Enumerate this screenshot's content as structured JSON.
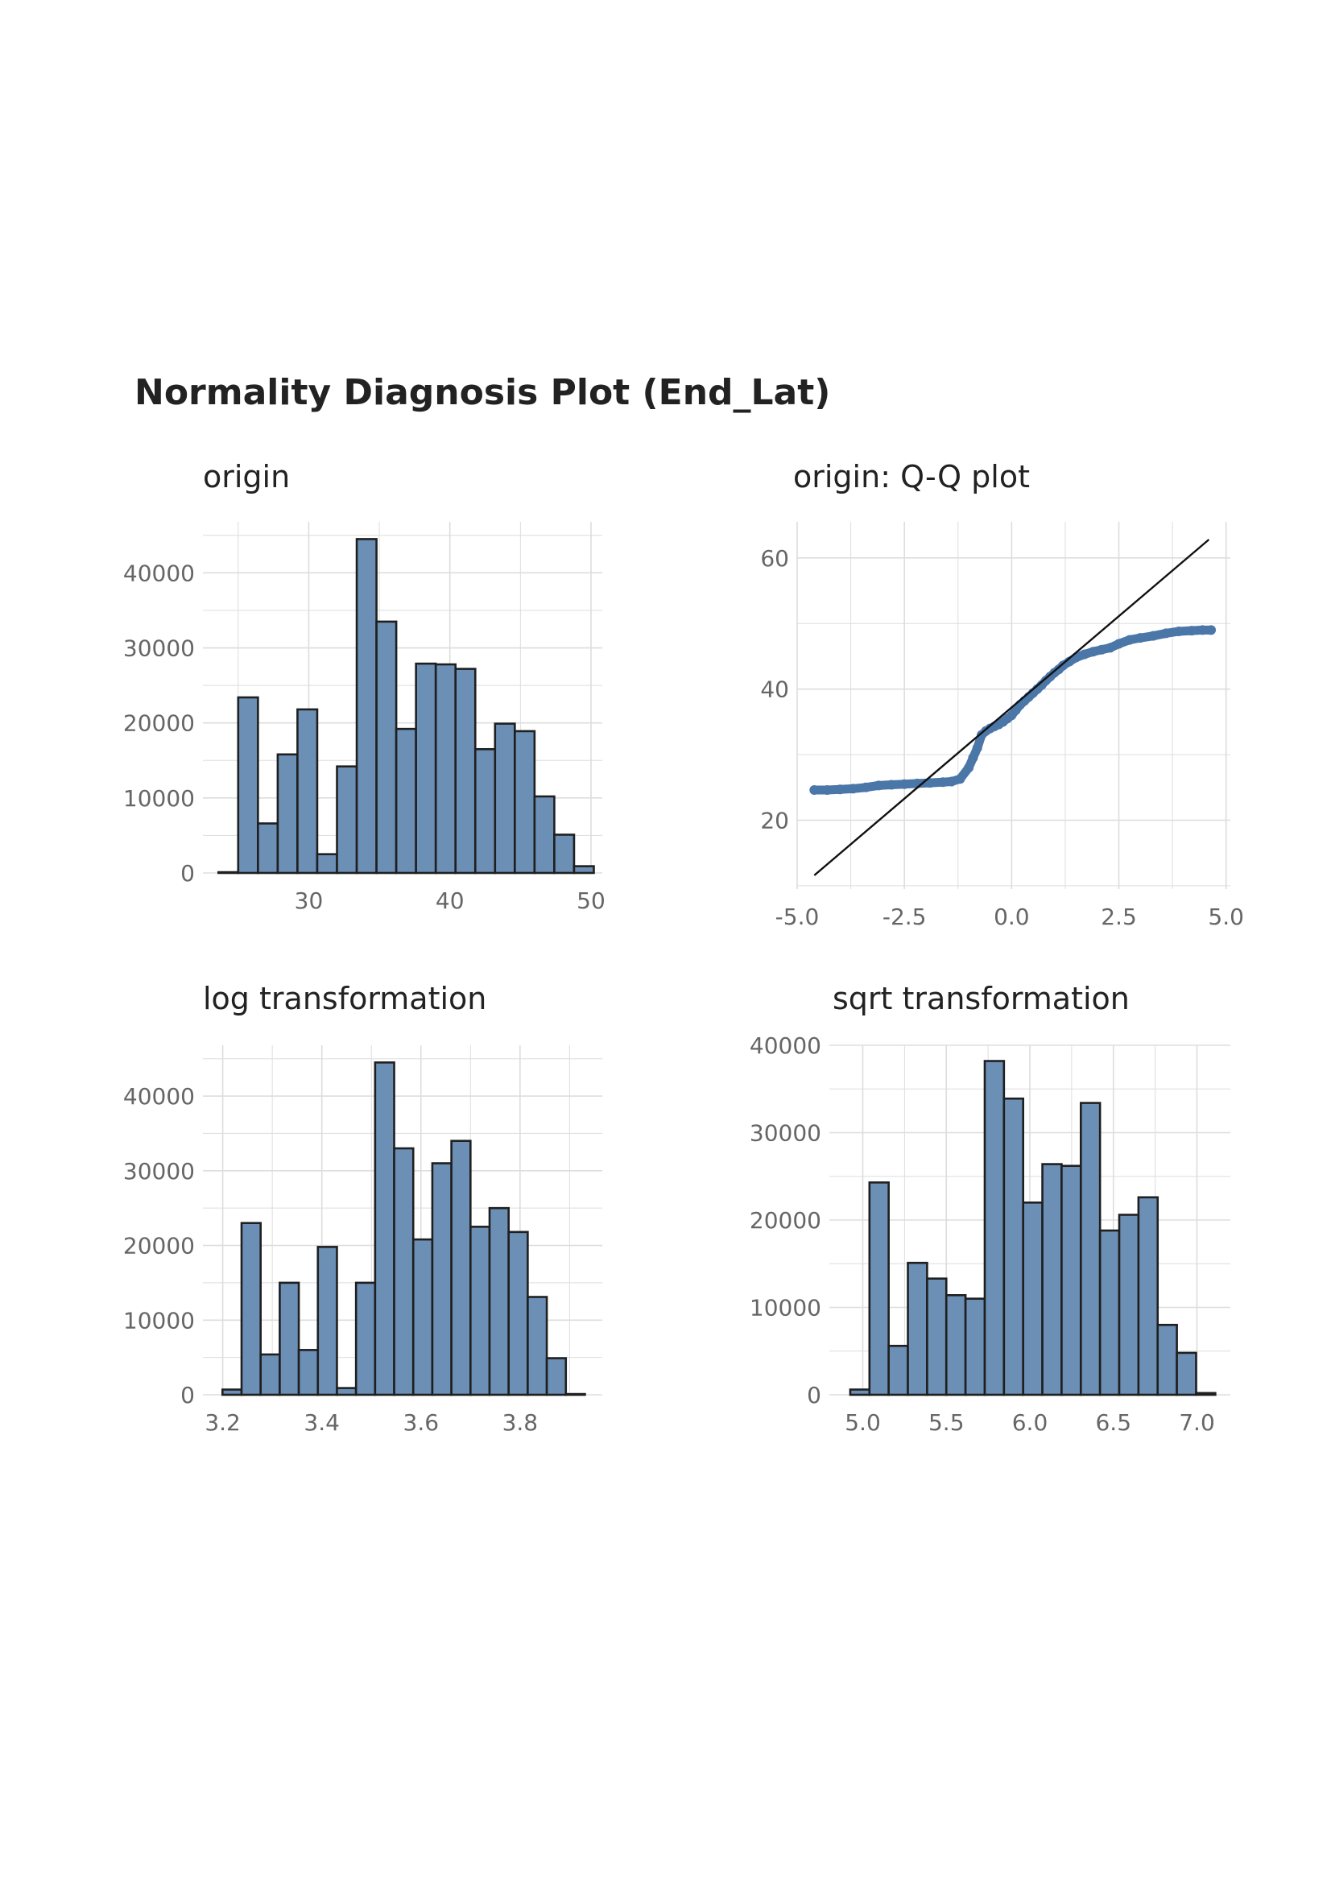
{
  "figure": {
    "title": "Normality Diagnosis Plot (End_Lat)"
  },
  "style": {
    "bar_fill": "#6b8fb5",
    "bar_stroke": "#1f1f1f",
    "point_color": "#4a76a8",
    "line_color": "#111111",
    "grid_color": "#dddddd",
    "tick_label_color": "#666666"
  },
  "chart_data": [
    {
      "id": "origin",
      "type": "bar",
      "title": "origin",
      "xlabel": "",
      "ylabel": "",
      "bin_width": 1.4,
      "bin_starts": [
        23.6,
        25.0,
        26.4,
        27.8,
        29.2,
        30.6,
        32.0,
        33.4,
        34.8,
        36.2,
        37.6,
        39.0,
        40.4,
        41.8,
        43.2,
        44.6,
        46.0,
        47.4,
        48.8
      ],
      "values": [
        100,
        23400,
        6600,
        15800,
        21800,
        2500,
        14200,
        44500,
        33500,
        19200,
        27900,
        27800,
        27200,
        16500,
        19900,
        18900,
        10200,
        5100,
        900
      ],
      "xlim": [
        22.5,
        50.8
      ],
      "ylim": [
        0,
        46800
      ],
      "x_ticks": [
        30,
        40,
        50
      ],
      "x_tick_labels": [
        "30",
        "40",
        "50"
      ],
      "y_ticks": [
        0,
        10000,
        20000,
        30000,
        40000
      ],
      "y_tick_labels": [
        "0",
        "10000",
        "20000",
        "30000",
        "40000"
      ],
      "grid": true
    },
    {
      "id": "qq",
      "type": "scatter",
      "title": "origin: Q-Q plot",
      "xlabel": "",
      "ylabel": "",
      "points": [
        [
          -4.6,
          24.6
        ],
        [
          -4.3,
          24.6
        ],
        [
          -4.0,
          24.7
        ],
        [
          -3.7,
          24.8
        ],
        [
          -3.4,
          25.0
        ],
        [
          -3.1,
          25.3
        ],
        [
          -2.8,
          25.4
        ],
        [
          -2.5,
          25.5
        ],
        [
          -2.2,
          25.6
        ],
        [
          -1.9,
          25.7
        ],
        [
          -1.6,
          25.8
        ],
        [
          -1.4,
          25.9
        ],
        [
          -1.2,
          26.3
        ],
        [
          -1.0,
          28.0
        ],
        [
          -0.9,
          29.5
        ],
        [
          -0.8,
          31.0
        ],
        [
          -0.7,
          33.0
        ],
        [
          -0.6,
          33.6
        ],
        [
          -0.5,
          34.0
        ],
        [
          -0.4,
          34.3
        ],
        [
          -0.3,
          34.6
        ],
        [
          -0.2,
          35.0
        ],
        [
          -0.1,
          35.5
        ],
        [
          0.0,
          36.0
        ],
        [
          0.1,
          36.8
        ],
        [
          0.2,
          37.6
        ],
        [
          0.3,
          38.2
        ],
        [
          0.4,
          38.8
        ],
        [
          0.5,
          39.4
        ],
        [
          0.6,
          40.0
        ],
        [
          0.7,
          40.6
        ],
        [
          0.8,
          41.3
        ],
        [
          0.9,
          41.9
        ],
        [
          1.0,
          42.5
        ],
        [
          1.1,
          43.0
        ],
        [
          1.2,
          43.6
        ],
        [
          1.35,
          44.2
        ],
        [
          1.5,
          44.8
        ],
        [
          1.7,
          45.3
        ],
        [
          1.9,
          45.7
        ],
        [
          2.1,
          46.0
        ],
        [
          2.3,
          46.3
        ],
        [
          2.5,
          46.9
        ],
        [
          2.75,
          47.5
        ],
        [
          3.0,
          47.8
        ],
        [
          3.3,
          48.1
        ],
        [
          3.6,
          48.5
        ],
        [
          3.9,
          48.8
        ],
        [
          4.2,
          48.9
        ],
        [
          4.45,
          49.0
        ],
        [
          4.65,
          49.0
        ]
      ],
      "reference_line": {
        "x": [
          -4.6,
          4.6
        ],
        "y": [
          11.6,
          62.8
        ]
      },
      "xlim": [
        -5.0,
        5.1
      ],
      "ylim": [
        9.5,
        65.5
      ],
      "x_ticks": [
        -5.0,
        -2.5,
        0.0,
        2.5,
        5.0
      ],
      "x_tick_labels": [
        "-5.0",
        "-2.5",
        "0.0",
        "2.5",
        "5.0"
      ],
      "y_ticks": [
        20,
        40,
        60
      ],
      "y_tick_labels": [
        "20",
        "40",
        "60"
      ],
      "grid": true
    },
    {
      "id": "log",
      "type": "bar",
      "title": "log transformation",
      "xlabel": "",
      "ylabel": "",
      "bin_width": 0.0385,
      "bin_starts": [
        3.1995,
        3.238,
        3.2765,
        3.315,
        3.3535,
        3.392,
        3.4305,
        3.469,
        3.5075,
        3.546,
        3.5845,
        3.623,
        3.6615,
        3.7,
        3.7385,
        3.777,
        3.8155,
        3.854,
        3.8925
      ],
      "values": [
        700,
        23000,
        5400,
        15000,
        6000,
        19800,
        900,
        15000,
        44500,
        33000,
        20800,
        31000,
        34000,
        22500,
        25000,
        21800,
        13100,
        4900,
        100
      ],
      "xlim": [
        3.16,
        3.966
      ],
      "ylim": [
        0,
        46800
      ],
      "x_ticks": [
        3.2,
        3.4,
        3.6,
        3.8
      ],
      "x_tick_labels": [
        "3.2",
        "3.4",
        "3.6",
        "3.8"
      ],
      "y_ticks": [
        0,
        10000,
        20000,
        30000,
        40000
      ],
      "y_tick_labels": [
        "0",
        "10000",
        "20000",
        "30000",
        "40000"
      ],
      "grid": true
    },
    {
      "id": "sqrt",
      "type": "bar",
      "title": "sqrt transformation",
      "xlabel": "",
      "ylabel": "",
      "bin_width": 0.115,
      "bin_starts": [
        4.925,
        5.04,
        5.155,
        5.27,
        5.385,
        5.5,
        5.615,
        5.73,
        5.845,
        5.96,
        6.075,
        6.19,
        6.305,
        6.42,
        6.535,
        6.65,
        6.765,
        6.88,
        6.995
      ],
      "values": [
        600,
        24300,
        5600,
        15100,
        13300,
        11400,
        11000,
        38200,
        33900,
        22000,
        26400,
        26200,
        33400,
        18800,
        20600,
        22600,
        8000,
        4800,
        200
      ],
      "xlim": [
        4.8,
        7.2
      ],
      "ylim": [
        0,
        40000
      ],
      "x_ticks": [
        5.0,
        5.5,
        6.0,
        6.5,
        7.0
      ],
      "x_tick_labels": [
        "5.0",
        "5.5",
        "6.0",
        "6.5",
        "7.0"
      ],
      "y_ticks": [
        0,
        10000,
        20000,
        30000,
        40000
      ],
      "y_tick_labels": [
        "0",
        "10000",
        "20000",
        "30000",
        "40000"
      ],
      "grid": true
    }
  ]
}
